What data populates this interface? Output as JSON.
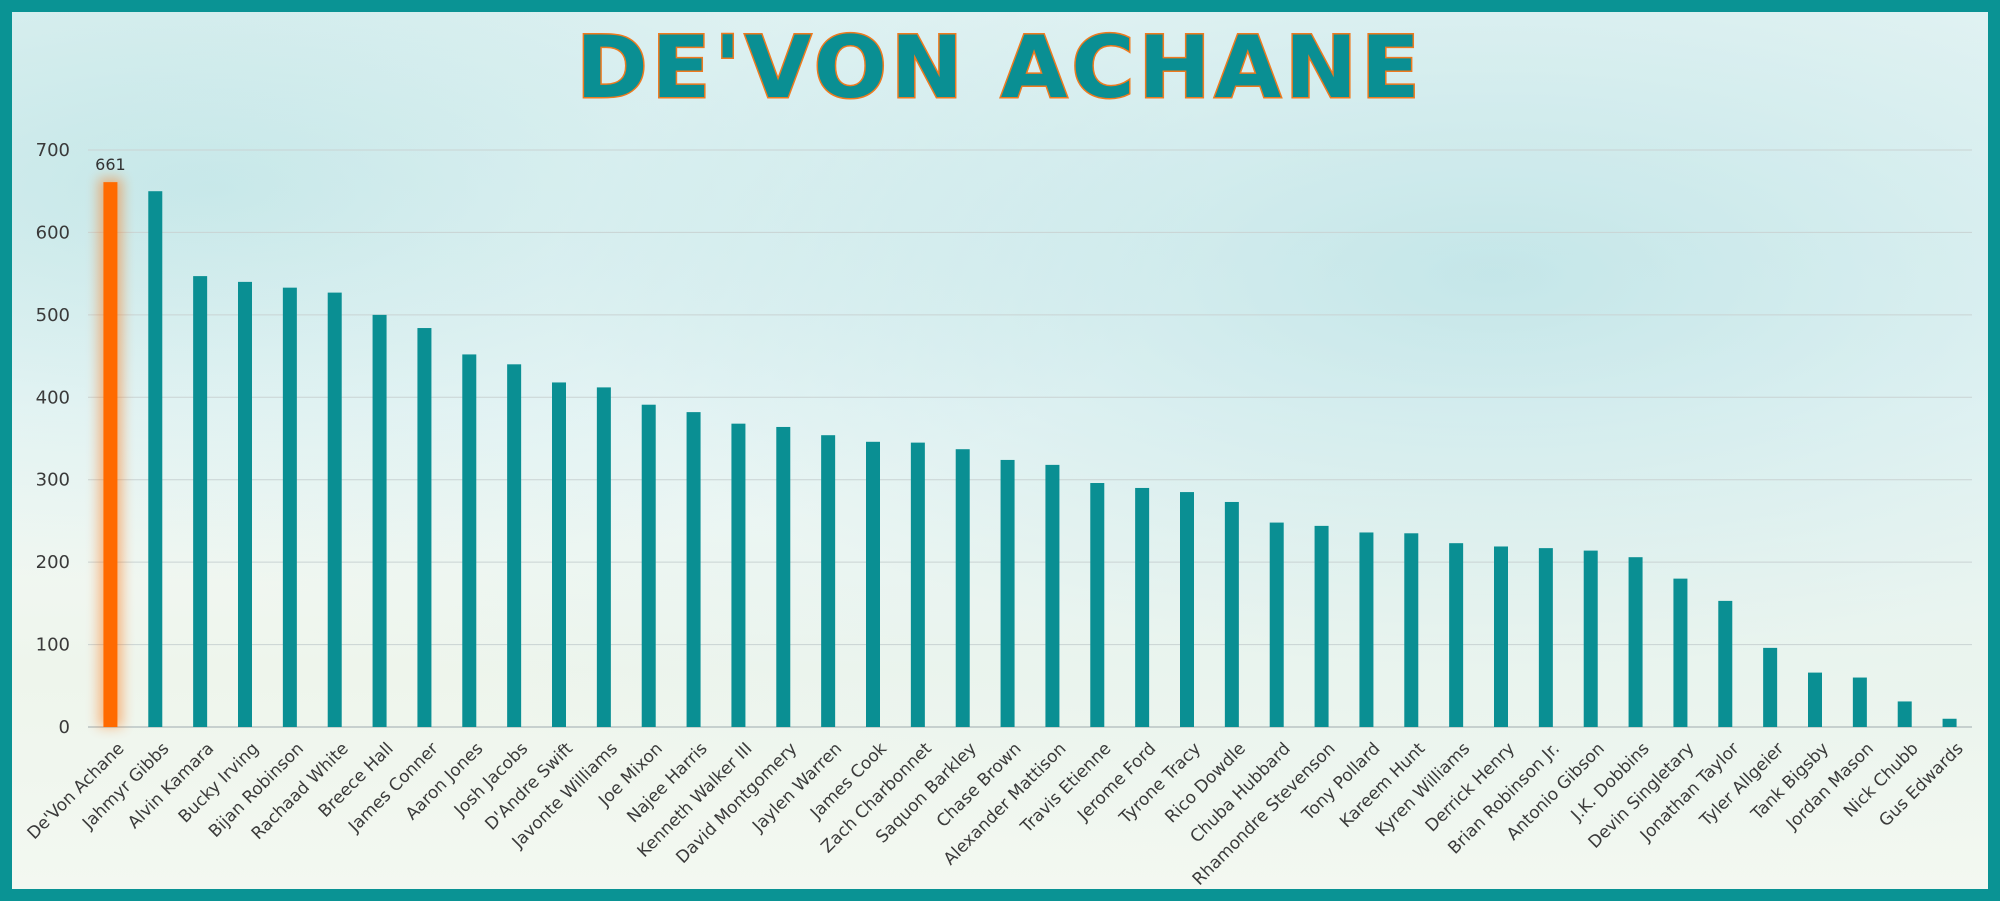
{
  "chart_data": {
    "type": "bar",
    "title": "DE'VON ACHANE",
    "xlabel": "",
    "ylabel": "",
    "ylim": [
      0,
      700
    ],
    "yticks": [
      0,
      100,
      200,
      300,
      400,
      500,
      600,
      700
    ],
    "grid": true,
    "legend": "none",
    "colors": {
      "default": "#0a8f93",
      "highlight": "#ff6a00",
      "title_fill": "#0a8f93",
      "title_stroke": "#f07a1e",
      "frame": "#0a9394"
    },
    "highlight_index": 0,
    "data_labels": {
      "0": "661"
    },
    "categories": [
      "De'Von Achane",
      "Jahmyr Gibbs",
      "Alvin Kamara",
      "Bucky Irving",
      "Bijan Robinson",
      "Rachaad White",
      "Breece Hall",
      "James Conner",
      "Aaron Jones",
      "Josh Jacobs",
      "D'Andre Swift",
      "Javonte Williams",
      "Joe Mixon",
      "Najee Harris",
      "Kenneth Walker III",
      "David Montgomery",
      "Jaylen Warren",
      "James Cook",
      "Zach Charbonnet",
      "Saquon Barkley",
      "Chase Brown",
      "Alexander Mattison",
      "Travis Etienne",
      "Jerome Ford",
      "Tyrone Tracy",
      "Rico Dowdle",
      "Chuba Hubbard",
      "Rhamondre Stevenson",
      "Tony Pollard",
      "Kareem Hunt",
      "Kyren Williams",
      "Derrick Henry",
      "Brian Robinson Jr.",
      "Antonio Gibson",
      "J.K. Dobbins",
      "Devin Singletary",
      "Jonathan Taylor",
      "Tyler Allgeier",
      "Tank Bigsby",
      "Jordan Mason",
      "Nick Chubb",
      "Gus Edwards"
    ],
    "values": [
      661,
      650,
      547,
      540,
      533,
      527,
      500,
      484,
      452,
      440,
      418,
      412,
      391,
      382,
      368,
      364,
      354,
      346,
      345,
      337,
      324,
      318,
      296,
      290,
      285,
      273,
      248,
      244,
      236,
      235,
      223,
      219,
      217,
      214,
      206,
      180,
      153,
      96,
      66,
      60,
      31,
      10
    ]
  }
}
